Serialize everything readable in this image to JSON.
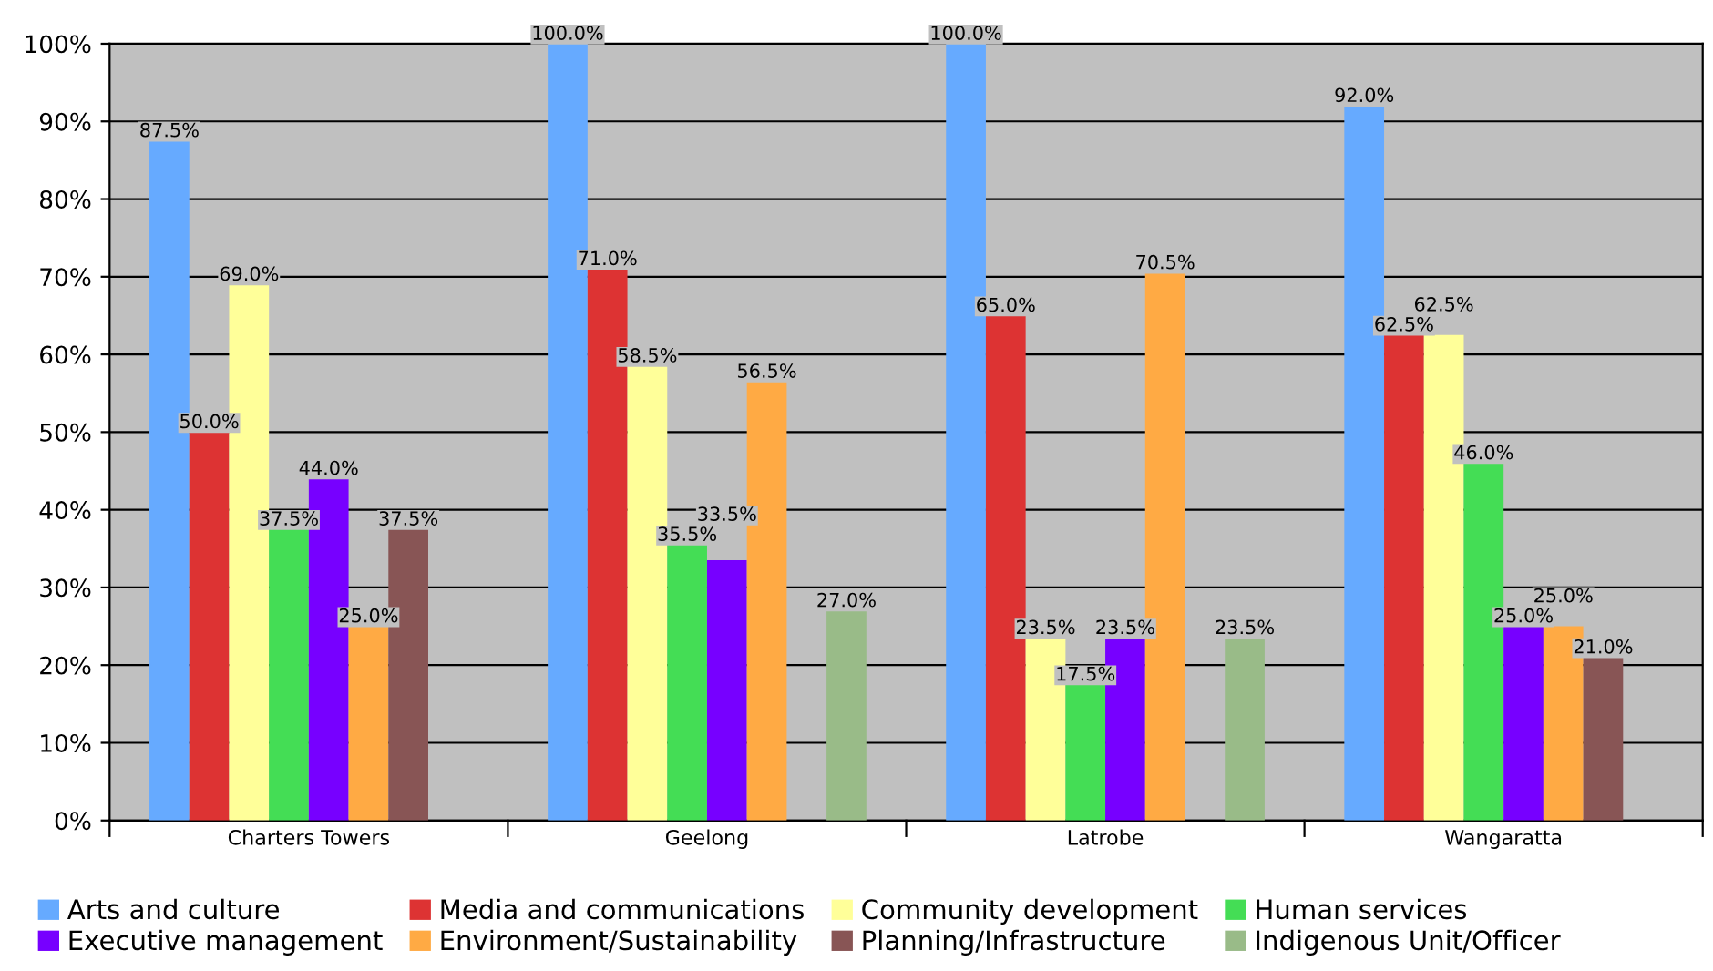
{
  "chart_data": {
    "type": "bar",
    "categories": [
      "Charters Towers",
      "Geelong",
      "Latrobe",
      "Wangaratta"
    ],
    "series": [
      {
        "name": "Arts and culture",
        "color": "#66aaff",
        "values": [
          87.5,
          100,
          100,
          92
        ],
        "value_labels": [
          "87.5%",
          "100.0%",
          "100.0%",
          "92.0%"
        ]
      },
      {
        "name": "Media and communications",
        "color": "#dd3333",
        "values": [
          50,
          71,
          65,
          62.5
        ],
        "value_labels": [
          "50.0%",
          "71.0%",
          "65.0%",
          "62.5%"
        ]
      },
      {
        "name": "Community development",
        "color": "#ffff99",
        "values": [
          69,
          58.5,
          23.5,
          62.5
        ],
        "value_labels": [
          "69.0%",
          "58.5%",
          "23.5%",
          "62.5%"
        ]
      },
      {
        "name": "Human services",
        "color": "#44dd55",
        "values": [
          37.5,
          35.5,
          17.5,
          46
        ],
        "value_labels": [
          "37.5%",
          "35.5%",
          "17.5%",
          "46.0%"
        ]
      },
      {
        "name": "Executive management",
        "color": "#7700ff",
        "values": [
          44,
          33.5,
          23.5,
          25
        ],
        "value_labels": [
          "44.0%",
          "33.5%",
          "23.5%",
          "25.0%"
        ]
      },
      {
        "name": "Environment/Sustainability",
        "color": "#ffaa44",
        "values": [
          25,
          56.5,
          70.5,
          25
        ],
        "value_labels": [
          "25.0%",
          "56.5%",
          "70.5%",
          "25.0%"
        ]
      },
      {
        "name": "Planning/Infrastructure",
        "color": "#885555",
        "values": [
          37.5,
          null,
          null,
          21
        ],
        "value_labels": [
          "37.5%",
          null,
          null,
          "21.0%"
        ]
      },
      {
        "name": "Indigenous Unit/Officer",
        "color": "#99bb88",
        "values": [
          null,
          27,
          23.5,
          null
        ],
        "value_labels": [
          null,
          "27.0%",
          "23.5%",
          null
        ]
      }
    ],
    "ylim": [
      0,
      100
    ],
    "yticks": [
      {
        "value": 0,
        "label": "0%"
      },
      {
        "value": 10,
        "label": "10%"
      },
      {
        "value": 20,
        "label": "20%"
      },
      {
        "value": 30,
        "label": "30%"
      },
      {
        "value": 40,
        "label": "40%"
      },
      {
        "value": 50,
        "label": "50%"
      },
      {
        "value": 60,
        "label": "60%"
      },
      {
        "value": 70,
        "label": "70%"
      },
      {
        "value": 80,
        "label": "80%"
      },
      {
        "value": 90,
        "label": "90%"
      },
      {
        "value": 100,
        "label": "100%"
      }
    ],
    "grid": "y",
    "legend": "bottom"
  }
}
